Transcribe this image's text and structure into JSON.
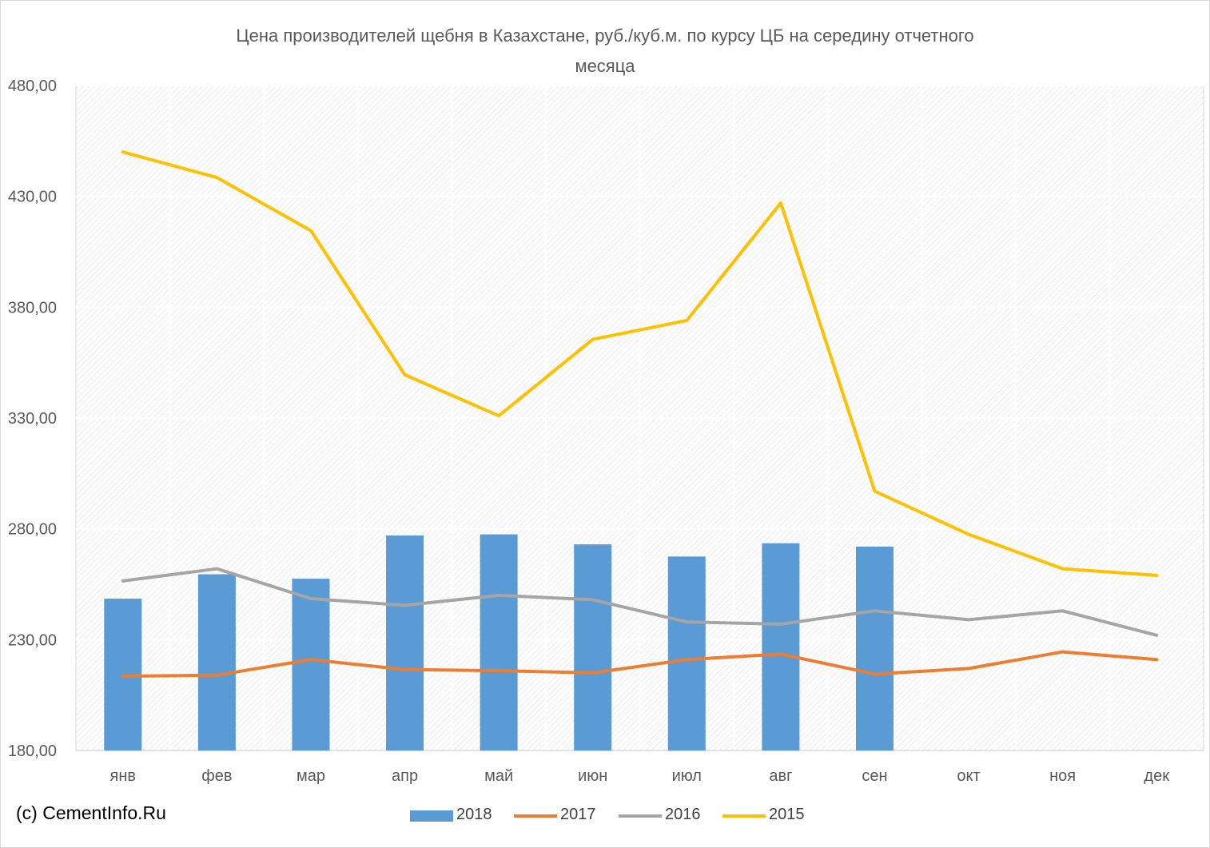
{
  "title_lines": [
    "Цена производителей  щебня в Казахстане, руб./куб.м.  по курсу ЦБ на середину отчетного",
    "месяца"
  ],
  "copyright": "(c) CementInfo.Ru",
  "colors": {
    "2018": "#5b9bd5",
    "2017": "#ed7d31",
    "2016": "#a5a5a5",
    "2015": "#ffc000",
    "grid": "#d9d9d9",
    "axis_text": "#595959"
  },
  "chart_data": {
    "type": "bar+line",
    "title": "Цена производителей  щебня в Казахстане, руб./куб.м.  по курсу ЦБ на середину отчетного месяца",
    "categories": [
      "янв",
      "фев",
      "мар",
      "апр",
      "май",
      "июн",
      "июл",
      "авг",
      "сен",
      "окт",
      "ноя",
      "дек"
    ],
    "ylim": [
      180,
      480
    ],
    "yticks": [
      "180,00",
      "230,00",
      "280,00",
      "330,00",
      "380,00",
      "430,00",
      "480,00"
    ],
    "ytick_values": [
      180,
      230,
      280,
      330,
      380,
      430,
      480
    ],
    "grid": true,
    "legend_position": "bottom",
    "series": [
      {
        "name": "2018",
        "type": "bar",
        "values": [
          248.5,
          259.5,
          257.5,
          277,
          277.5,
          273,
          267.5,
          273.5,
          272,
          null,
          null,
          null
        ]
      },
      {
        "name": "2017",
        "type": "line",
        "values": [
          213.5,
          214,
          221,
          216.5,
          216,
          215,
          221,
          223.5,
          214.5,
          217,
          224.5,
          221
        ]
      },
      {
        "name": "2016",
        "type": "line",
        "values": [
          256.5,
          262,
          248.5,
          245.5,
          250,
          248,
          238,
          237,
          243,
          239,
          243,
          232
        ]
      },
      {
        "name": "2015",
        "type": "line",
        "values": [
          450,
          438.5,
          414.5,
          349.5,
          331,
          365.5,
          374,
          427,
          297,
          277.5,
          262,
          259
        ]
      }
    ]
  }
}
